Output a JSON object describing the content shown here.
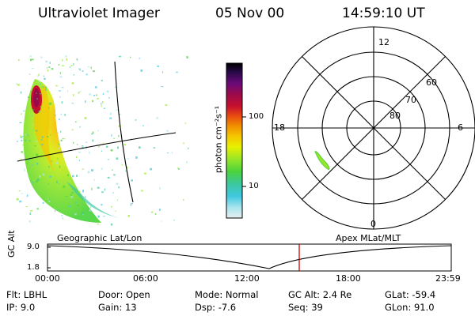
{
  "header": {
    "title": "Ultraviolet Imager",
    "date": "05 Nov 00",
    "time": "14:59:10 UT"
  },
  "colorbar": {
    "label": "photon cm⁻²s⁻¹",
    "ticks": [
      "100",
      "10"
    ],
    "colors": [
      "#000000",
      "#2a0a4a",
      "#6a0a7a",
      "#9a0a4a",
      "#c8102e",
      "#e84a10",
      "#f08a00",
      "#f5c400",
      "#e8f000",
      "#98e628",
      "#4ad23c",
      "#3cc8a0",
      "#40c8e0",
      "#a8e4ee",
      "#e6eef0"
    ]
  },
  "left_map": {
    "label": "Geographic Lat/Lon"
  },
  "polar_plot": {
    "label": "Apex MLat/MLT",
    "mlt_labels": {
      "top": "12",
      "left": "18",
      "right": "6",
      "bottom": "0"
    },
    "lat_labels": [
      "60",
      "70",
      "80"
    ]
  },
  "orbit_panel": {
    "ylabel": "GC Alt",
    "yticks": [
      "9.0",
      "1.8"
    ],
    "xticks": [
      "00:00",
      "06:00",
      "12:00",
      "18:00",
      "23:59"
    ],
    "current_time_marker_color": "#cc0000"
  },
  "info": {
    "row1": [
      {
        "label": "Flt:",
        "value": "LBHL"
      },
      {
        "label": "Door:",
        "value": "Open"
      },
      {
        "label": "Mode:",
        "value": "Normal"
      },
      {
        "label": "GC Alt:",
        "value": "2.4 Re"
      },
      {
        "label": "GLat:",
        "value": "-59.4"
      }
    ],
    "row2": [
      {
        "label": "IP:",
        "value": "9.0"
      },
      {
        "label": "Gain:",
        "value": "13"
      },
      {
        "label": "Dsp:",
        "value": "-7.6"
      },
      {
        "label": "Seq:",
        "value": "39"
      },
      {
        "label": "GLon:",
        "value": "91.0"
      }
    ]
  }
}
